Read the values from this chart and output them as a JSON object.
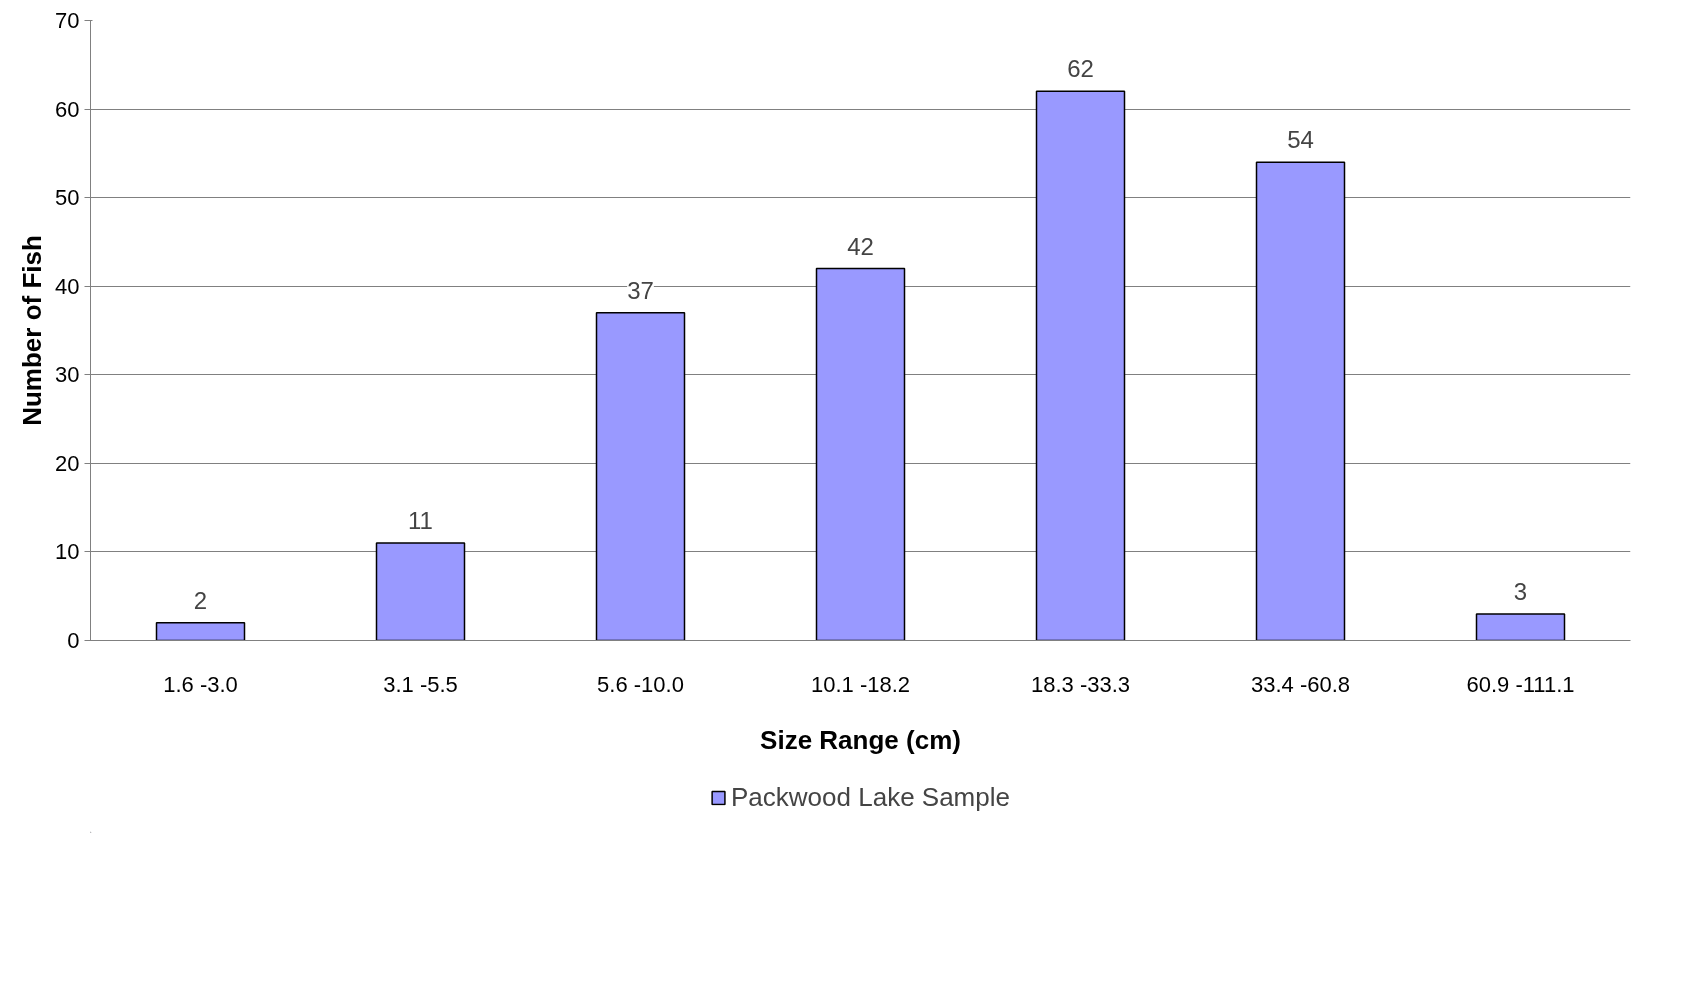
{
  "chart_data": {
    "type": "bar",
    "xlabel": "Size Range (cm)",
    "ylabel": "Number of Fish",
    "categories": [
      "1.6 -3.0",
      "3.1 -5.5",
      "5.6 -10.0",
      "10.1 -18.2",
      "18.3 -33.3",
      "33.4 -60.8",
      "60.9 -111.1"
    ],
    "series": [
      {
        "name": "Packwood Lake Sample",
        "color": "#9999ff",
        "values": [
          2,
          11,
          37,
          42,
          62,
          54,
          3
        ]
      }
    ],
    "ylim": [
      0,
      70
    ],
    "yticks": [
      0,
      10,
      20,
      30,
      40,
      50,
      60,
      70
    ],
    "grid": "y",
    "legend": "bottom",
    "data_labels": true
  }
}
